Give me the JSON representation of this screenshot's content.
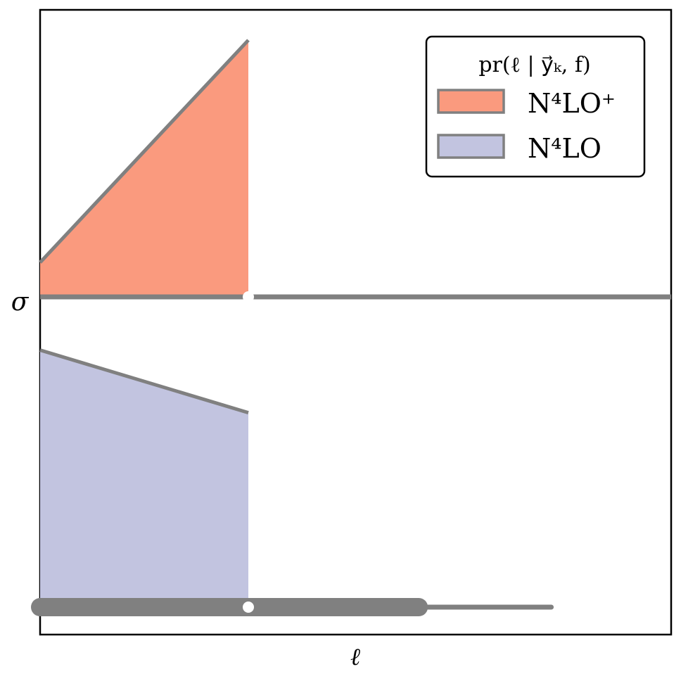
{
  "chart_data": {
    "type": "area",
    "title": "",
    "xlabel": "ℓ",
    "ylabel": "σ",
    "xlim": [
      0,
      1
    ],
    "legend": {
      "title": "pr(ℓ | y⃗ₖ, f)",
      "placement": "top-right",
      "entries": [
        {
          "name": "N⁴LO⁺",
          "color": "#fa9a7e",
          "edge": "#808080"
        },
        {
          "name": "N⁴LO",
          "color": "#c2c4e0",
          "edge": "#808080"
        }
      ]
    },
    "series": [
      {
        "name": "N⁴LO⁺",
        "fill": "#fa9a7e",
        "line": "#808080",
        "x": [
          0,
          0.33
        ],
        "y": [
          0.11,
          0.82
        ],
        "baseline": 0
      },
      {
        "name": "N⁴LO",
        "fill": "#c2c4e0",
        "line": "#808080",
        "x": [
          0,
          0.33
        ],
        "y": [
          -0.17,
          -0.37
        ],
        "baseline": -1
      }
    ],
    "reference_line": {
      "value": 0,
      "label": "σ",
      "color": "#808080"
    },
    "interval_bar": {
      "color": "#808080",
      "wide_range": [
        0,
        0.6
      ],
      "narrow_range": [
        0,
        0.81
      ],
      "point": 0.33
    },
    "markers": [
      {
        "x": 0.33,
        "y": 0,
        "color": "#ffffff"
      }
    ]
  }
}
